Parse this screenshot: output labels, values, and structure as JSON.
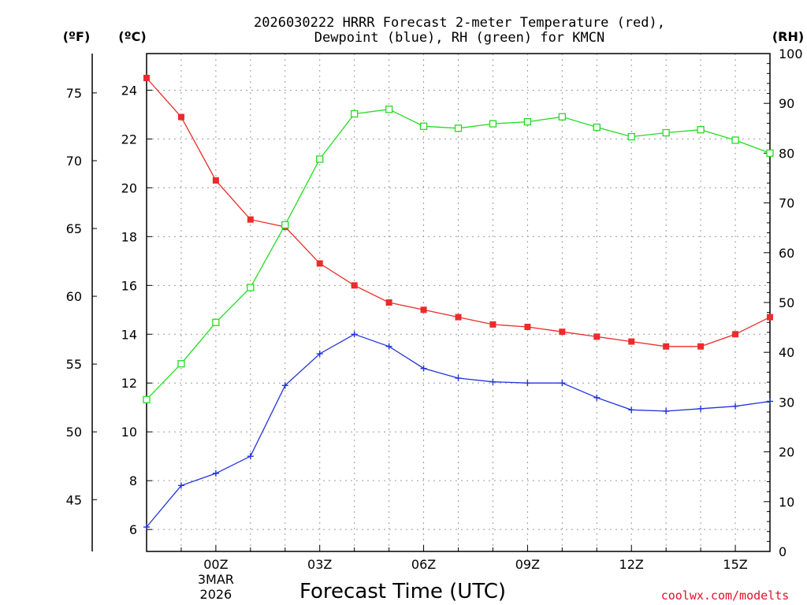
{
  "chart_data": {
    "type": "line",
    "title_line1": "2026030222 HRRR Forecast 2-meter Temperature (red),",
    "title_line2": "Dewpoint (blue), RH (green) for KMCN",
    "unit_f": "(ºF)",
    "unit_c": "(ºC)",
    "unit_rh": "(RH)",
    "xlabel": "Forecast Time (UTC)",
    "credit": "coolwx.com/modelts",
    "x": [
      -2,
      -1,
      0,
      1,
      2,
      3,
      4,
      5,
      6,
      7,
      8,
      9,
      10,
      11,
      12,
      13,
      14,
      15,
      16
    ],
    "x_range": [
      -2,
      16
    ],
    "x_ticks": [
      {
        "x": 0,
        "label": "00Z",
        "label2": "3MAR",
        "label3": "2026"
      },
      {
        "x": 3,
        "label": "03Z"
      },
      {
        "x": 6,
        "label": "06Z"
      },
      {
        "x": 9,
        "label": "09Z"
      },
      {
        "x": 12,
        "label": "12Z"
      },
      {
        "x": 15,
        "label": "15Z"
      }
    ],
    "celsius_range": [
      5.1,
      25.5
    ],
    "celsius_ticks": [
      "6",
      "8",
      "10",
      "12",
      "14",
      "16",
      "18",
      "20",
      "22",
      "24"
    ],
    "fahrenheit_ticks": [
      "45",
      "50",
      "55",
      "60",
      "65",
      "70",
      "75"
    ],
    "rh_range": [
      0,
      100
    ],
    "rh_ticks": [
      "0",
      "10",
      "20",
      "30",
      "40",
      "50",
      "60",
      "70",
      "80",
      "90",
      "100"
    ],
    "series": [
      {
        "name": "Temperature",
        "axis": "C",
        "color": "#ee2a2a",
        "marker": "filled-square",
        "values": [
          24.5,
          22.9,
          20.3,
          18.7,
          18.4,
          16.9,
          16.0,
          15.3,
          15.0,
          14.7,
          14.4,
          14.3,
          14.1,
          13.9,
          13.7,
          13.5,
          13.5,
          14.0,
          14.7
        ]
      },
      {
        "name": "Dewpoint",
        "axis": "C",
        "color": "#2233dd",
        "marker": "plus",
        "values": [
          6.1,
          7.8,
          8.3,
          9.0,
          11.9,
          13.2,
          14.0,
          13.5,
          12.6,
          12.2,
          12.05,
          12.0,
          12.0,
          11.4,
          10.9,
          10.85,
          10.95,
          11.05,
          11.25
        ]
      },
      {
        "name": "RH",
        "axis": "RH",
        "color": "#22dd22",
        "marker": "open-square",
        "values": [
          30.5,
          37.7,
          46.0,
          53.0,
          65.6,
          78.8,
          87.9,
          88.8,
          85.4,
          85.0,
          85.9,
          86.3,
          87.3,
          85.2,
          83.3,
          84.1,
          84.7,
          82.6,
          80.0
        ]
      }
    ]
  }
}
